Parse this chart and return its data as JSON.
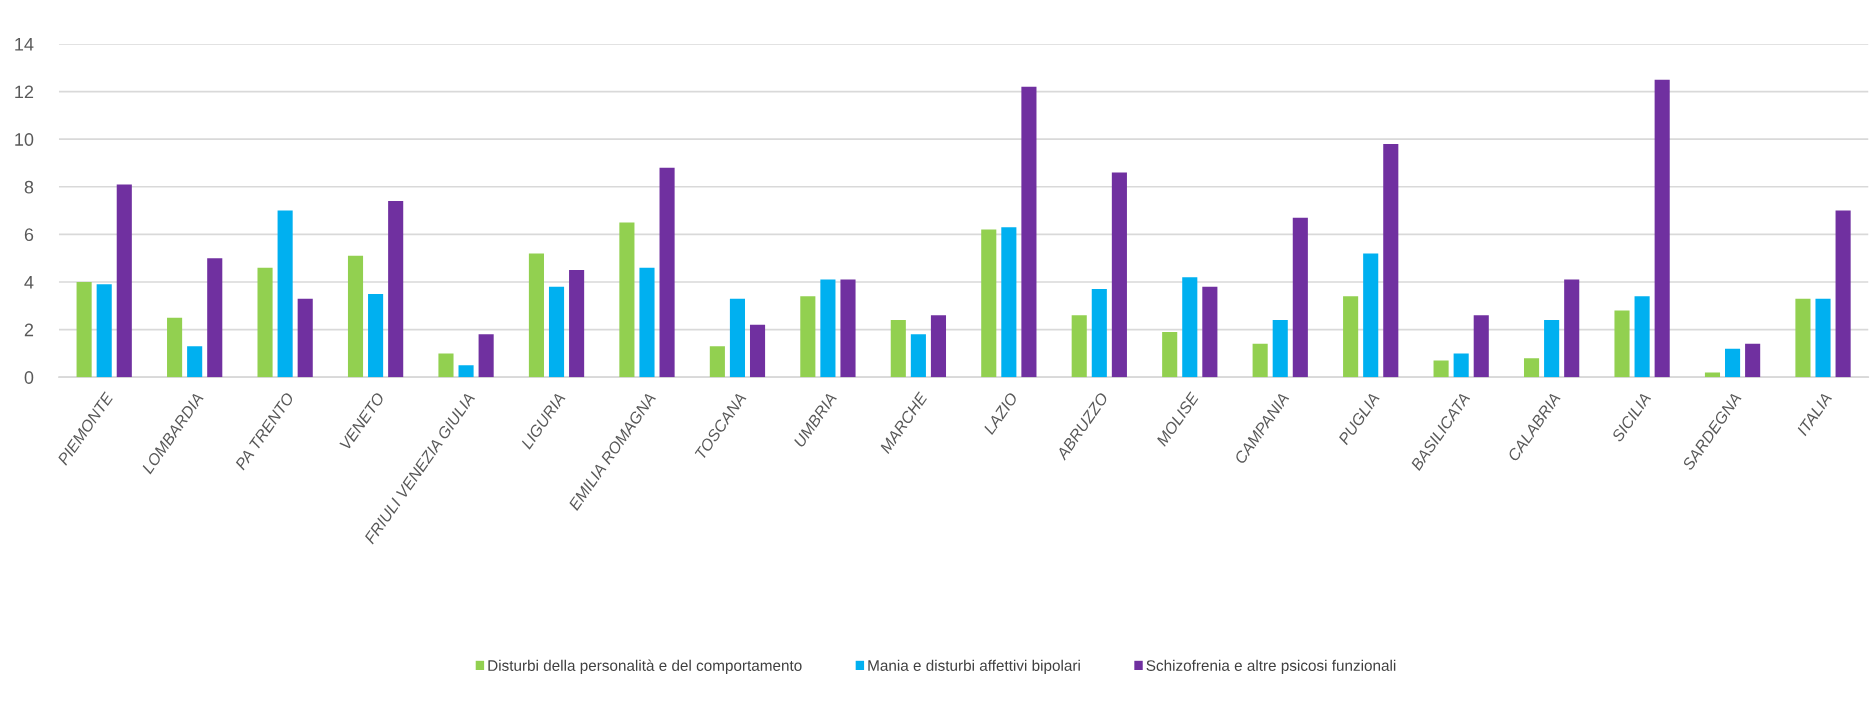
{
  "chart_data": {
    "type": "bar",
    "categories": [
      "PIEMONTE",
      "LOMBARDIA",
      "PA TRENTO",
      "VENETO",
      "FRIULI VENEZIA GIULIA",
      "LIGURIA",
      "EMILIA ROMAGNA",
      "TOSCANA",
      "UMBRIA",
      "MARCHE",
      "LAZIO",
      "ABRUZZO",
      "MOLISE",
      "CAMPANIA",
      "PUGLIA",
      "BASILICATA",
      "CALABRIA",
      "SICILIA",
      "SARDEGNA",
      "ITALIA"
    ],
    "series": [
      {
        "name": "Disturbi della personalità e del comportamento",
        "color": "#92d050",
        "values": [
          4.0,
          2.5,
          4.6,
          5.1,
          1.0,
          5.2,
          6.5,
          1.3,
          3.4,
          2.4,
          6.2,
          2.6,
          1.9,
          1.4,
          3.4,
          0.7,
          0.8,
          2.8,
          0.2,
          3.3
        ]
      },
      {
        "name": "Mania e disturbi affettivi bipolari",
        "color": "#00b0f0",
        "values": [
          3.9,
          1.3,
          7.0,
          3.5,
          0.5,
          3.8,
          4.6,
          3.3,
          4.1,
          1.8,
          6.3,
          3.7,
          4.2,
          2.4,
          5.2,
          1.0,
          2.4,
          3.4,
          1.2,
          3.3
        ]
      },
      {
        "name": "Schizofrenia e altre psicosi funzionali",
        "color": "#7030a0",
        "values": [
          8.1,
          5.0,
          3.3,
          7.4,
          1.8,
          4.5,
          8.8,
          2.2,
          4.1,
          2.6,
          12.2,
          8.6,
          3.8,
          6.7,
          9.8,
          2.6,
          4.1,
          12.5,
          1.4,
          7.0
        ]
      }
    ],
    "ylim": [
      0,
      14
    ],
    "yticks": [
      0,
      2,
      4,
      6,
      8,
      10,
      12,
      14
    ],
    "grid": "y",
    "legend": "bottom"
  }
}
